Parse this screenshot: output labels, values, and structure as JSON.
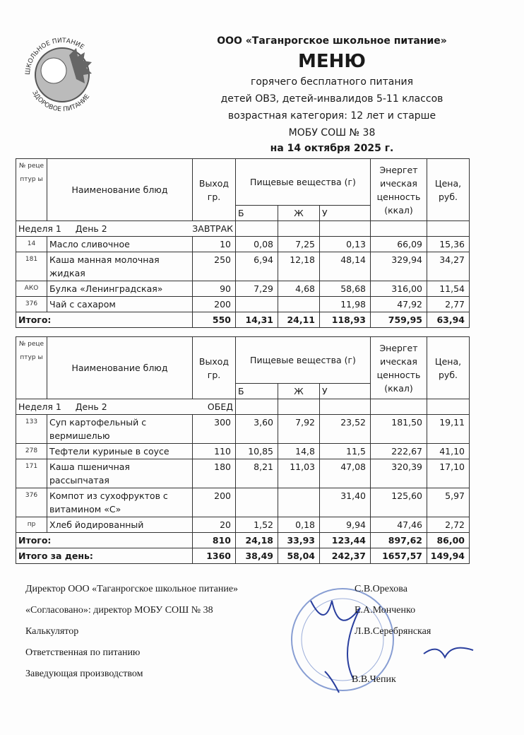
{
  "header": {
    "org": "ООО «Таганрогское школьное питание»",
    "title": "МЕНЮ",
    "line1": "горячего бесплатного питания",
    "line2": "детей ОВЗ, детей-инвалидов 5-11 классов",
    "line3": "возрастная категория: 12 лет и старше",
    "line4": "МОБУ СОШ № 38",
    "date": "на 14 октября 2025 г."
  },
  "logo": {
    "top": "ШКОЛЬНОЕ ПИТАНИЕ",
    "bottom": "ЗДОРОВОЕ ПИТАНИЕ"
  },
  "columns": {
    "num": "№ реце птур ы",
    "name": "Наименование блюд",
    "output": "Выход гр.",
    "nutrients": "Пищевые вещества (г)",
    "b": "Б",
    "zh": "Ж",
    "u": "У",
    "energy": "Энергет ическая ценность (ккал)",
    "price": "Цена, руб."
  },
  "breakfast": {
    "week": "Неделя 1",
    "day": "День 2",
    "meal": "ЗАВТРАК",
    "rows": [
      {
        "num": "14",
        "name": "Масло сливочное",
        "out": "10",
        "b": "0,08",
        "zh": "7,25",
        "u": "0,13",
        "e": "66,09",
        "p": "15,36"
      },
      {
        "num": "181",
        "name": "Каша манная молочная жидкая",
        "out": "250",
        "b": "6,94",
        "zh": "12,18",
        "u": "48,14",
        "e": "329,94",
        "p": "34,27"
      },
      {
        "num": "АКО",
        "name": "Булка «Ленинградская»",
        "out": "90",
        "b": "7,29",
        "zh": "4,68",
        "u": "58,68",
        "e": "316,00",
        "p": "11,54"
      },
      {
        "num": "376",
        "name": "Чай с сахаром",
        "out": "200",
        "b": "",
        "zh": "",
        "u": "11,98",
        "e": "47,92",
        "p": "2,77"
      }
    ],
    "total": {
      "label": "Итого:",
      "out": "550",
      "b": "14,31",
      "zh": "24,11",
      "u": "118,93",
      "e": "759,95",
      "p": "63,94"
    }
  },
  "lunch": {
    "week": "Неделя 1",
    "day": "День 2",
    "meal": "ОБЕД",
    "rows": [
      {
        "num": "133",
        "name": "Суп картофельный с вермишелью",
        "out": "300",
        "b": "3,60",
        "zh": "7,92",
        "u": "23,52",
        "e": "181,50",
        "p": "19,11"
      },
      {
        "num": "278",
        "name": "Тефтели куриные в соусе",
        "out": "110",
        "b": "10,85",
        "zh": "14,8",
        "u": "11,5",
        "e": "222,67",
        "p": "41,10"
      },
      {
        "num": "171",
        "name": "Каша пшеничная рассыпчатая",
        "out": "180",
        "b": "8,21",
        "zh": "11,03",
        "u": "47,08",
        "e": "320,39",
        "p": "17,10"
      },
      {
        "num": "376",
        "name": "Компот из сухофруктов с витамином «С»",
        "out": "200",
        "b": "",
        "zh": "",
        "u": "31,40",
        "e": "125,60",
        "p": "5,97"
      },
      {
        "num": "пр",
        "name": "Хлеб йодированный",
        "out": "20",
        "b": "1,52",
        "zh": "0,18",
        "u": "9,94",
        "e": "47,46",
        "p": "2,72"
      }
    ],
    "total": {
      "label": "Итого:",
      "out": "810",
      "b": "24,18",
      "zh": "33,93",
      "u": "123,44",
      "e": "897,62",
      "p": "86,00"
    },
    "day_total": {
      "label": "Итого за день:",
      "out": "1360",
      "b": "38,49",
      "zh": "58,04",
      "u": "242,37",
      "e": "1657,57",
      "p": "149,94"
    }
  },
  "signatures": [
    {
      "role": "Директор ООО «Таганрогское школьное питание»",
      "name": "С.В.Орехова"
    },
    {
      "role": "«Согласовано»: директор МОБУ СОШ № 38",
      "name": "Е.А.Монченко"
    },
    {
      "role": "Калькулятор",
      "name": "Л.В.Серебрянская"
    },
    {
      "role": "Ответственная по питанию",
      "name": ""
    },
    {
      "role": "Заведующая производством",
      "name": "В.В.Чепик"
    }
  ],
  "colors": {
    "stamp": "#3b5fb8",
    "ink": "#1a1a1a"
  }
}
